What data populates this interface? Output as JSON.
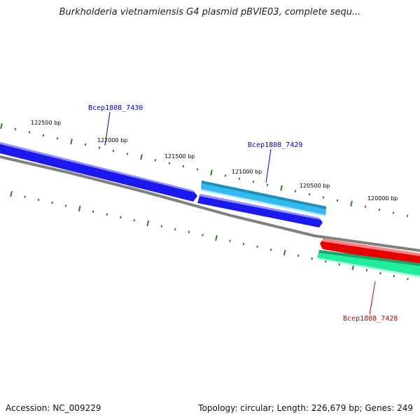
{
  "title": "Burkholderia vietnamiensis G4 plasmid pBVIE03, complete sequ...",
  "colors": {
    "backbone": "#808080",
    "tick": "#2e7d2e",
    "gene_dark_blue": "#1a1aee",
    "gene_light_blue": "#33bbee",
    "gene_red": "#e60000",
    "gene_green": "#22ee99",
    "label_blue": "#0000bb",
    "label_red": "#cc0000"
  },
  "tick_labels": [
    "122500 bp",
    "122000 bp",
    "121500 bp",
    "121000 bp",
    "120500 bp",
    "120000 bp"
  ],
  "genes": [
    {
      "label": "Bcep1808_7430",
      "color_key": "gene_dark_blue",
      "label_color_key": "label_blue"
    },
    {
      "label": "Bcep1808_7429",
      "color_key": "gene_light_blue",
      "label_color_key": "label_blue"
    },
    {
      "label": "Bcep1808_7428",
      "color_key": "gene_red",
      "label_color_key": "label_red"
    }
  ],
  "footer": {
    "accession": "Accession: NC_009229",
    "summary": "Topology: circular; Length: 226,679 bp; Genes: 249"
  }
}
